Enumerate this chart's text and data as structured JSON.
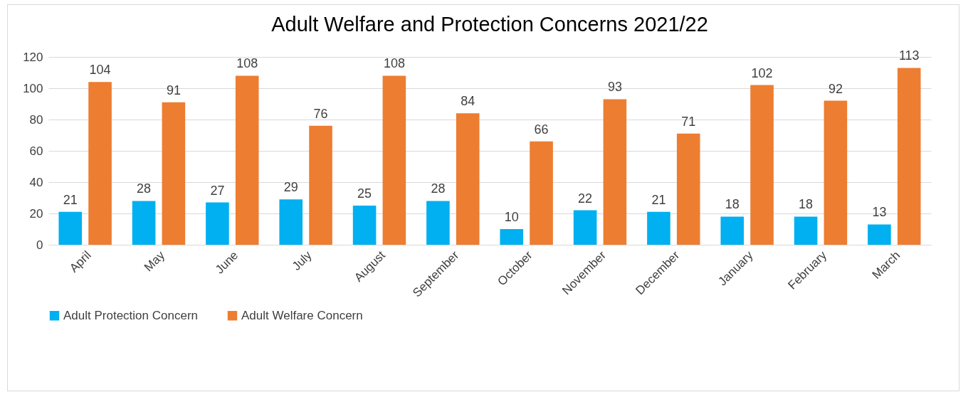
{
  "chart_data": {
    "type": "bar",
    "title": "Adult Welfare and Protection Concerns 2021/22",
    "categories": [
      "April",
      "May",
      "June",
      "July",
      "August",
      "September",
      "October",
      "November",
      "December",
      "January",
      "February",
      "March"
    ],
    "series": [
      {
        "name": "Adult Protection Concern",
        "color": "#00b0f0",
        "values": [
          21,
          28,
          27,
          29,
          25,
          28,
          10,
          22,
          21,
          18,
          18,
          13
        ]
      },
      {
        "name": "Adult Welfare Concern",
        "color": "#ed7d31",
        "values": [
          104,
          91,
          108,
          76,
          108,
          84,
          66,
          93,
          71,
          102,
          92,
          113
        ]
      }
    ],
    "ylim": [
      0,
      120
    ],
    "yticks": [
      0,
      20,
      40,
      60,
      80,
      100,
      120
    ],
    "grid": "y",
    "legend": "bottom",
    "data_labels": true
  }
}
